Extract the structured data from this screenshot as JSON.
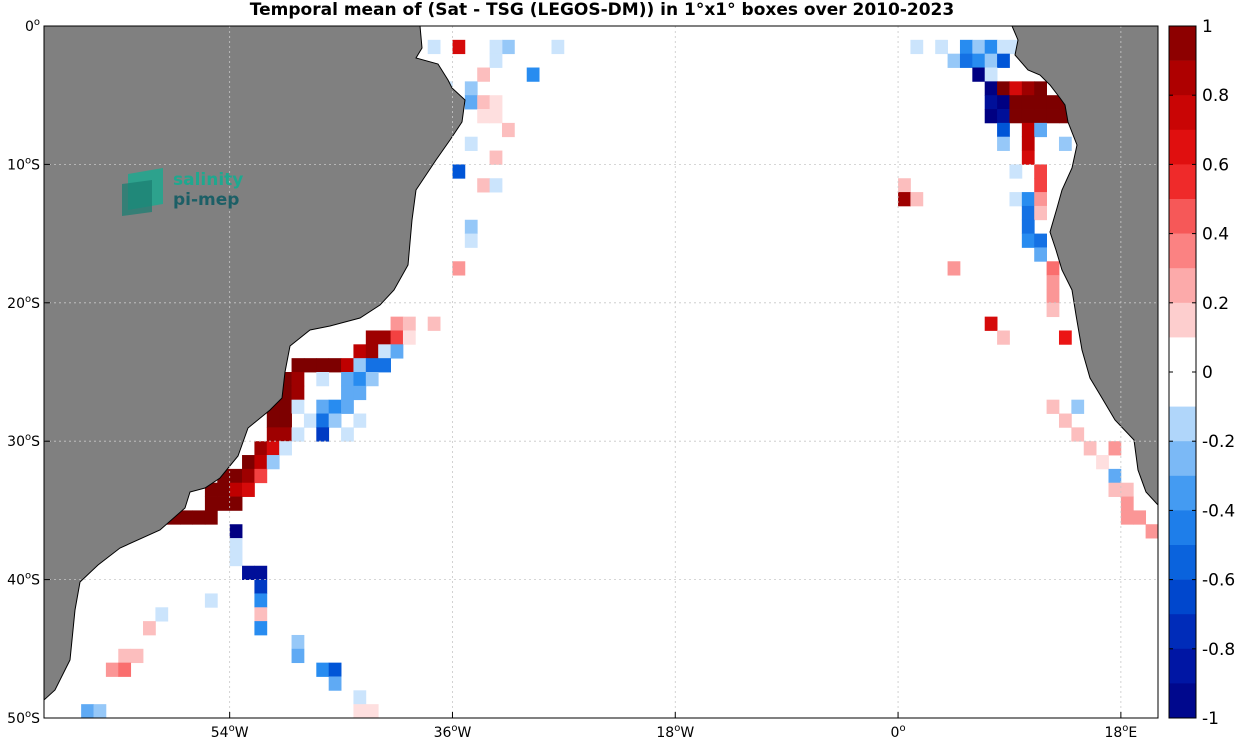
{
  "chart_data": {
    "type": "heatmap",
    "title": "Temporal mean of (Sat - TSG (LEGOS-DM)) in 1°x1° boxes over 2010-2023",
    "xlim": [
      -69,
      21
    ],
    "ylim": [
      -50,
      0
    ],
    "x_ticks": [
      {
        "value": -54,
        "label": "54",
        "deg": "o",
        "hemi": "W"
      },
      {
        "value": -36,
        "label": "36",
        "deg": "o",
        "hemi": "W"
      },
      {
        "value": -18,
        "label": "18",
        "deg": "o",
        "hemi": "W"
      },
      {
        "value": 0,
        "label": "0",
        "deg": "o",
        "hemi": ""
      },
      {
        "value": 18,
        "label": "18",
        "deg": "o",
        "hemi": "E"
      }
    ],
    "y_ticks": [
      {
        "value": 0,
        "label": "0",
        "deg": "o",
        "hemi": ""
      },
      {
        "value": -10,
        "label": "10",
        "deg": "o",
        "hemi": "S"
      },
      {
        "value": -20,
        "label": "20",
        "deg": "o",
        "hemi": "S"
      },
      {
        "value": -30,
        "label": "30",
        "deg": "o",
        "hemi": "S"
      },
      {
        "value": -40,
        "label": "40",
        "deg": "o",
        "hemi": "S"
      },
      {
        "value": -50,
        "label": "50",
        "deg": "o",
        "hemi": "S"
      }
    ],
    "grid": true,
    "colorbar": {
      "range": [
        -1,
        1
      ],
      "levels": 20,
      "tick_values": [
        1,
        0.8,
        0.6,
        0.4,
        0.2,
        0,
        -0.2,
        -0.4,
        -0.6,
        -0.8,
        -1
      ],
      "tick_labels": [
        "1",
        "0.8",
        "0.6",
        "0.4",
        "0.2",
        "0",
        "-0.2",
        "-0.4",
        "-0.6",
        "-0.8",
        "-1"
      ]
    },
    "cells": [
      [
        -36,
        -1,
        0.7
      ],
      [
        -38,
        -1,
        -0.1
      ],
      [
        -32,
        -1,
        -0.2
      ],
      [
        -33,
        -1,
        -0.1
      ],
      [
        -28,
        -1,
        -0.1
      ],
      [
        -33,
        -2,
        -0.1
      ],
      [
        -38,
        -3,
        -0.3
      ],
      [
        -30,
        -3,
        -0.4
      ],
      [
        -34,
        -3,
        0.2
      ],
      [
        -37,
        -4,
        -0.1
      ],
      [
        -35,
        -4,
        -0.2
      ],
      [
        -35,
        -5,
        -0.3
      ],
      [
        -34,
        -5,
        0.2
      ],
      [
        -33,
        -5,
        0.1
      ],
      [
        -34,
        -6,
        0.1
      ],
      [
        -33,
        -6,
        0.1
      ],
      [
        -32,
        -7,
        0.2
      ],
      [
        -35,
        -8,
        -0.1
      ],
      [
        -33,
        -9,
        0.2
      ],
      [
        -36,
        -10,
        -0.6
      ],
      [
        -34,
        -11,
        0.2
      ],
      [
        -33,
        -11,
        -0.1
      ],
      [
        -35,
        -14,
        -0.2
      ],
      [
        -35,
        -15,
        -0.1
      ],
      [
        -36,
        -17,
        0.3
      ],
      [
        -41,
        -21,
        0.3
      ],
      [
        -40,
        -21,
        0.2
      ],
      [
        -38,
        -21,
        0.2
      ],
      [
        -43,
        -22,
        0.9
      ],
      [
        -42,
        -22,
        0.9
      ],
      [
        -41,
        -22,
        0.5
      ],
      [
        -40,
        -22,
        0.1
      ],
      [
        -44,
        -23,
        0.8
      ],
      [
        -43,
        -23,
        0.9
      ],
      [
        -42,
        -23,
        -0.1
      ],
      [
        -41,
        -23,
        -0.3
      ],
      [
        -49,
        -24,
        1.0
      ],
      [
        -48,
        -24,
        1.0
      ],
      [
        -47,
        -24,
        1.0
      ],
      [
        -46,
        -24,
        1.0
      ],
      [
        -45,
        -24,
        0.8
      ],
      [
        -44,
        -24,
        -0.2
      ],
      [
        -43,
        -24,
        -0.5
      ],
      [
        -42,
        -24,
        -0.5
      ],
      [
        -50,
        -25,
        1.0
      ],
      [
        -49,
        -25,
        0.9
      ],
      [
        -47,
        -25,
        -0.1
      ],
      [
        -45,
        -25,
        -0.3
      ],
      [
        -44,
        -25,
        -0.4
      ],
      [
        -43,
        -25,
        -0.2
      ],
      [
        -51,
        -26,
        1.0
      ],
      [
        -50,
        -26,
        1.0
      ],
      [
        -49,
        -26,
        0.9
      ],
      [
        -45,
        -26,
        -0.3
      ],
      [
        -44,
        -26,
        -0.3
      ],
      [
        -51,
        -27,
        1.0
      ],
      [
        -50,
        -27,
        1.0
      ],
      [
        -49,
        -27,
        -0.1
      ],
      [
        -47,
        -27,
        -0.3
      ],
      [
        -46,
        -27,
        -0.4
      ],
      [
        -45,
        -27,
        -0.3
      ],
      [
        -51,
        -28,
        1.0
      ],
      [
        -50,
        -28,
        1.0
      ],
      [
        -48,
        -28,
        -0.1
      ],
      [
        -47,
        -28,
        -0.5
      ],
      [
        -46,
        -28,
        -0.2
      ],
      [
        -44,
        -28,
        -0.1
      ],
      [
        -51,
        -29,
        0.9
      ],
      [
        -50,
        -29,
        0.9
      ],
      [
        -49,
        -29,
        -0.1
      ],
      [
        -47,
        -29,
        -0.7
      ],
      [
        -45,
        -29,
        -0.1
      ],
      [
        -52,
        -30,
        0.9
      ],
      [
        -51,
        -30,
        0.7
      ],
      [
        -50,
        -30,
        -0.1
      ],
      [
        -53,
        -31,
        1.0
      ],
      [
        -52,
        -31,
        0.8
      ],
      [
        -51,
        -31,
        -0.2
      ],
      [
        -55,
        -32,
        1.0
      ],
      [
        -54,
        -32,
        1.0
      ],
      [
        -53,
        -32,
        0.9
      ],
      [
        -52,
        -32,
        0.5
      ],
      [
        -56,
        -33,
        1.0
      ],
      [
        -55,
        -33,
        1.0
      ],
      [
        -54,
        -33,
        0.8
      ],
      [
        -53,
        -33,
        0.7
      ],
      [
        -56,
        -34,
        1.0
      ],
      [
        -55,
        -34,
        1.0
      ],
      [
        -54,
        -34,
        1.0
      ],
      [
        -60,
        -35,
        1.0
      ],
      [
        -59,
        -35,
        1.0
      ],
      [
        -58,
        -35,
        1.0
      ],
      [
        -57,
        -35,
        1.0
      ],
      [
        -56,
        -35,
        1.0
      ],
      [
        -54,
        -36,
        -1.0
      ],
      [
        -54,
        -37,
        -0.1
      ],
      [
        -54,
        -38,
        -0.1
      ],
      [
        -53,
        -39,
        -0.9
      ],
      [
        -52,
        -39,
        -0.9
      ],
      [
        -52,
        -40,
        -0.7
      ],
      [
        -52,
        -41,
        -0.4
      ],
      [
        -52,
        -42,
        0.2
      ],
      [
        -52,
        -43,
        -0.4
      ],
      [
        -56,
        -41,
        -0.1
      ],
      [
        -60,
        -42,
        -0.1
      ],
      [
        -61,
        -43,
        0.2
      ],
      [
        -49,
        -44,
        -0.2
      ],
      [
        -49,
        -45,
        -0.3
      ],
      [
        -63,
        -45,
        0.2
      ],
      [
        -62,
        -45,
        0.2
      ],
      [
        -47,
        -46,
        -0.4
      ],
      [
        -46,
        -46,
        -0.6
      ],
      [
        -64,
        -46,
        0.3
      ],
      [
        -63,
        -46,
        0.4
      ],
      [
        -46,
        -47,
        -0.3
      ],
      [
        -44,
        -48,
        -0.1
      ],
      [
        -66,
        -49,
        -0.3
      ],
      [
        -65,
        -49,
        -0.2
      ],
      [
        -44,
        -49,
        0.1
      ],
      [
        -43,
        -49,
        0.1
      ],
      [
        1,
        -1,
        -0.1
      ],
      [
        3,
        -1,
        -0.1
      ],
      [
        5,
        -1,
        -0.4
      ],
      [
        6,
        -1,
        -0.2
      ],
      [
        7,
        -1,
        -0.4
      ],
      [
        8,
        -1,
        -0.1
      ],
      [
        9,
        -1,
        -0.1
      ],
      [
        4,
        -2,
        -0.2
      ],
      [
        5,
        -2,
        -0.5
      ],
      [
        6,
        -2,
        -0.4
      ],
      [
        7,
        -2,
        -0.2
      ],
      [
        8,
        -2,
        -0.6
      ],
      [
        6,
        -3,
        -1.0
      ],
      [
        7,
        -3,
        -0.1
      ],
      [
        7,
        -4,
        -1.0
      ],
      [
        8,
        -4,
        1.0
      ],
      [
        9,
        -4,
        0.7
      ],
      [
        10,
        -4,
        0.9
      ],
      [
        11,
        -4,
        1.0
      ],
      [
        7,
        -5,
        -0.9
      ],
      [
        8,
        -5,
        -1.0
      ],
      [
        9,
        -5,
        1.0
      ],
      [
        10,
        -5,
        1.0
      ],
      [
        11,
        -5,
        1.0
      ],
      [
        12,
        -5,
        1.0
      ],
      [
        13,
        -5,
        1.0
      ],
      [
        7,
        -6,
        -1.0
      ],
      [
        8,
        -6,
        -0.9
      ],
      [
        9,
        -6,
        1.0
      ],
      [
        10,
        -6,
        1.0
      ],
      [
        11,
        -6,
        1.0
      ],
      [
        12,
        -6,
        1.0
      ],
      [
        13,
        -6,
        1.0
      ],
      [
        8,
        -7,
        -0.6
      ],
      [
        10,
        -7,
        0.8
      ],
      [
        11,
        -7,
        -0.3
      ],
      [
        8,
        -8,
        -0.2
      ],
      [
        10,
        -8,
        0.8
      ],
      [
        13,
        -8,
        -0.2
      ],
      [
        10,
        -9,
        0.7
      ],
      [
        9,
        -10,
        -0.1
      ],
      [
        11,
        -10,
        0.5
      ],
      [
        11,
        -11,
        0.5
      ],
      [
        9,
        -12,
        -0.1
      ],
      [
        10,
        -12,
        -0.4
      ],
      [
        11,
        -12,
        0.3
      ],
      [
        10,
        -13,
        -0.5
      ],
      [
        11,
        -13,
        0.2
      ],
      [
        10,
        -14,
        -0.5
      ],
      [
        10,
        -15,
        -0.4
      ],
      [
        11,
        -15,
        -0.5
      ],
      [
        11,
        -16,
        -0.3
      ],
      [
        12,
        -17,
        0.4
      ],
      [
        12,
        -18,
        0.3
      ],
      [
        12,
        -19,
        0.3
      ],
      [
        12,
        -20,
        0.2
      ],
      [
        0,
        -11,
        0.2
      ],
      [
        0,
        -12,
        0.9
      ],
      [
        1,
        -12,
        0.2
      ],
      [
        4,
        -17,
        0.3
      ],
      [
        7,
        -21,
        0.7
      ],
      [
        8,
        -22,
        0.2
      ],
      [
        13,
        -22,
        0.6
      ],
      [
        12,
        -27,
        0.2
      ],
      [
        14,
        -27,
        -0.2
      ],
      [
        13,
        -28,
        0.2
      ],
      [
        14,
        -29,
        0.2
      ],
      [
        15,
        -30,
        0.2
      ],
      [
        17,
        -30,
        0.3
      ],
      [
        16,
        -31,
        0.1
      ],
      [
        17,
        -32,
        -0.3
      ],
      [
        17,
        -33,
        0.2
      ],
      [
        18,
        -33,
        0.2
      ],
      [
        18,
        -34,
        0.3
      ],
      [
        18,
        -35,
        0.3
      ],
      [
        19,
        -35,
        0.3
      ],
      [
        20,
        -36,
        0.3
      ]
    ]
  }
}
